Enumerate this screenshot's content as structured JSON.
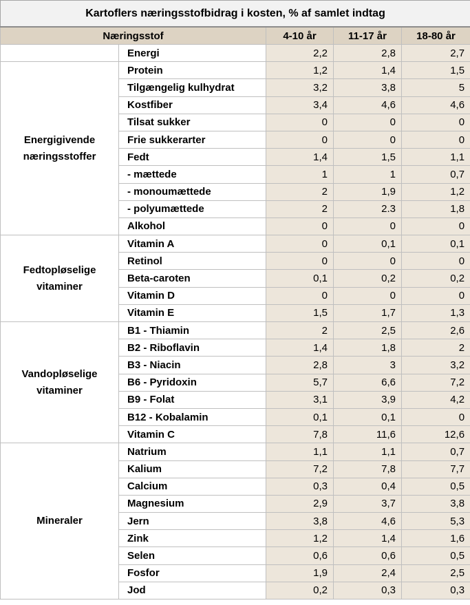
{
  "title": "Kartoflers næringsstofbidrag i kosten, % af samlet indtag",
  "header": [
    "Næringsstof",
    "4-10 år",
    "11-17 år",
    "18-80 år"
  ],
  "groups": [
    {
      "label": null,
      "rows": [
        {
          "name": "Energi",
          "values": [
            "2,2",
            "2,8",
            "2,7"
          ]
        }
      ]
    },
    {
      "label": "Energigivende næringsstoffer",
      "rows": [
        {
          "name": "Protein",
          "values": [
            "1,2",
            "1,4",
            "1,5"
          ]
        },
        {
          "name": "Tilgængelig kulhydrat",
          "values": [
            "3,2",
            "3,8",
            "5"
          ]
        },
        {
          "name": "Kostfiber",
          "values": [
            "3,4",
            "4,6",
            "4,6"
          ]
        },
        {
          "name": "Tilsat sukker",
          "values": [
            "0",
            "0",
            "0"
          ]
        },
        {
          "name": "Frie sukkerarter",
          "values": [
            "0",
            "0",
            "0"
          ]
        },
        {
          "name": "Fedt",
          "values": [
            "1,4",
            "1,5",
            "1,1"
          ]
        },
        {
          "name": "- mættede",
          "values": [
            "1",
            "1",
            "0,7"
          ]
        },
        {
          "name": "- monoumættede",
          "values": [
            "2",
            "1,9",
            "1,2"
          ]
        },
        {
          "name": "- polyumættede",
          "values": [
            "2",
            "2.3",
            "1,8"
          ]
        },
        {
          "name": "Alkohol",
          "values": [
            "0",
            "0",
            "0"
          ]
        }
      ]
    },
    {
      "label": "Fedtopløselige vitaminer",
      "rows": [
        {
          "name": "Vitamin A",
          "values": [
            "0",
            "0,1",
            "0,1"
          ]
        },
        {
          "name": "Retinol",
          "values": [
            "0",
            "0",
            "0"
          ]
        },
        {
          "name": "Beta-caroten",
          "values": [
            "0,1",
            "0,2",
            "0,2"
          ]
        },
        {
          "name": "Vitamin D",
          "values": [
            "0",
            "0",
            "0"
          ]
        },
        {
          "name": "Vitamin E",
          "values": [
            "1,5",
            "1,7",
            "1,3"
          ]
        }
      ]
    },
    {
      "label": "Vandopløselige vitaminer",
      "rows": [
        {
          "name": "B1 - Thiamin",
          "values": [
            "2",
            "2,5",
            "2,6"
          ]
        },
        {
          "name": "B2 - Riboflavin",
          "values": [
            "1,4",
            "1,8",
            "2"
          ]
        },
        {
          "name": "B3 - Niacin",
          "values": [
            "2,8",
            "3",
            "3,2"
          ]
        },
        {
          "name": "B6 - Pyridoxin",
          "values": [
            "5,7",
            "6,6",
            "7,2"
          ]
        },
        {
          "name": "B9 - Folat",
          "values": [
            "3,1",
            "3,9",
            "4,2"
          ]
        },
        {
          "name": "B12 - Kobalamin",
          "values": [
            "0,1",
            "0,1",
            "0"
          ]
        },
        {
          "name": "Vitamin C",
          "values": [
            "7,8",
            "11,6",
            "12,6"
          ]
        }
      ]
    },
    {
      "label": "Mineraler",
      "rows": [
        {
          "name": "Natrium",
          "values": [
            "1,1",
            "1,1",
            "0,7"
          ]
        },
        {
          "name": "Kalium",
          "values": [
            "7,2",
            "7,8",
            "7,7"
          ]
        },
        {
          "name": "Calcium",
          "values": [
            "0,3",
            "0,4",
            "0,5"
          ]
        },
        {
          "name": "Magnesium",
          "values": [
            "2,9",
            "3,7",
            "3,8"
          ]
        },
        {
          "name": "Jern",
          "values": [
            "3,8",
            "4,6",
            "5,3"
          ]
        },
        {
          "name": "Zink",
          "values": [
            "1,2",
            "1,4",
            "1,6"
          ]
        },
        {
          "name": "Selen",
          "values": [
            "0,6",
            "0,6",
            "0,5"
          ]
        },
        {
          "name": "Fosfor",
          "values": [
            "1,9",
            "2,4",
            "2,5"
          ]
        },
        {
          "name": "Jod",
          "values": [
            "0,2",
            "0,3",
            "0,3"
          ]
        }
      ]
    }
  ]
}
